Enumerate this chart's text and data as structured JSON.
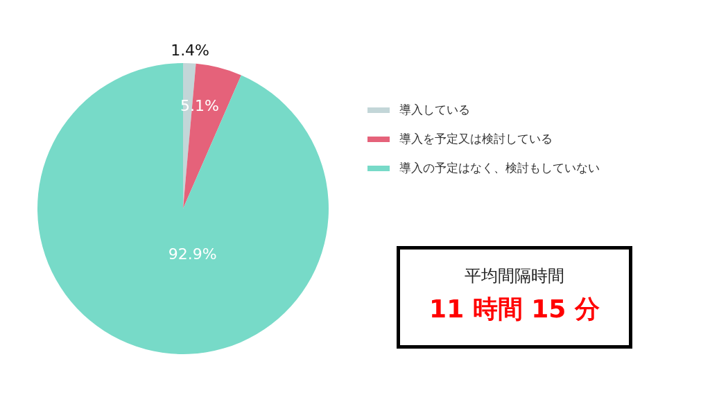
{
  "chart_data": {
    "type": "pie",
    "categories": [
      "導入している",
      "導入を予定又は検討している",
      "導入の予定はなく、検討もしていない"
    ],
    "values": [
      1.4,
      5.1,
      92.9
    ],
    "colors": [
      "#c3d6d8",
      "#e5627a",
      "#77dac8"
    ],
    "value_labels": [
      "1.4%",
      "5.1%",
      "92.9%"
    ],
    "legend": "right",
    "annotations": [
      "平均間隔時間",
      "11 時間 15 分"
    ]
  }
}
